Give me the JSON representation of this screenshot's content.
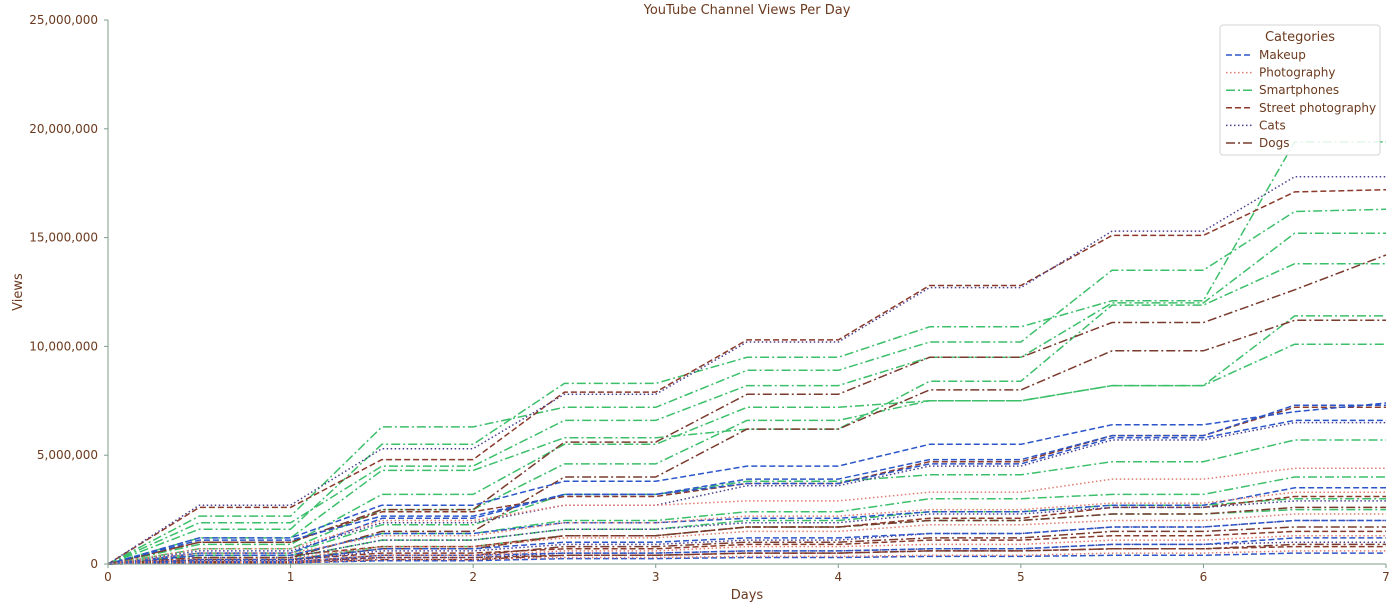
{
  "chart_data": {
    "type": "line",
    "title": "YouTube Channel Views Per Day",
    "xlabel": "Days",
    "ylabel": "Views",
    "xlim": [
      0,
      7
    ],
    "ylim": [
      0,
      25000000
    ],
    "x": [
      0,
      0.5,
      1,
      1.5,
      2,
      2.5,
      3,
      3.5,
      4,
      4.5,
      5,
      5.5,
      6,
      6.5,
      7
    ],
    "x_ticks": [
      "0",
      "1",
      "2",
      "3",
      "4",
      "5",
      "6",
      "7"
    ],
    "y_ticks": [
      "0",
      "5,000,000",
      "10,000,000",
      "15,000,000",
      "20,000,000",
      "25,000,000"
    ],
    "grid": false,
    "legend": {
      "title": "Categories",
      "placement": "top-right",
      "entries": [
        "Makeup",
        "Photography",
        "Smartphones",
        "Street photography",
        "Cats",
        "Dogs"
      ]
    },
    "styles": {
      "Makeup": {
        "color": "#2b55c9",
        "dash": "6,3"
      },
      "Photography": {
        "color": "#e07b6e",
        "dash": "1.5,2.5"
      },
      "Smartphones": {
        "color": "#3cbf6a",
        "dash": "9,3,2,3"
      },
      "Street photography": {
        "color": "#8b3a2a",
        "dash": "6,3"
      },
      "Cats": {
        "color": "#4a3f8f",
        "dash": "1.5,2.5"
      },
      "Dogs": {
        "color": "#7a3b2e",
        "dash": "9,3,2,3"
      }
    },
    "series": [
      {
        "category": "Smartphones",
        "values": [
          0,
          1600000,
          1600000,
          5500000,
          5500000,
          8300000,
          8300000,
          9500000,
          9500000,
          10900000,
          10900000,
          12100000,
          12100000,
          19400000,
          19400000
        ]
      },
      {
        "category": "Smartphones",
        "values": [
          0,
          2200000,
          2200000,
          6300000,
          6300000,
          7200000,
          7200000,
          8900000,
          8900000,
          10200000,
          10200000,
          13500000,
          13500000,
          16200000,
          16300000
        ]
      },
      {
        "category": "Smartphones",
        "values": [
          0,
          1900000,
          1900000,
          4500000,
          4500000,
          6600000,
          6600000,
          8200000,
          8200000,
          9500000,
          9500000,
          12000000,
          12000000,
          15200000,
          15200000
        ]
      },
      {
        "category": "Smartphones",
        "values": [
          0,
          1200000,
          1200000,
          4300000,
          4300000,
          5800000,
          5800000,
          6200000,
          6200000,
          8400000,
          8400000,
          11900000,
          11900000,
          13800000,
          13800000
        ]
      },
      {
        "category": "Smartphones",
        "values": [
          0,
          900000,
          900000,
          3200000,
          3200000,
          5500000,
          5500000,
          7200000,
          7200000,
          7500000,
          7500000,
          8200000,
          8200000,
          11400000,
          11400000
        ]
      },
      {
        "category": "Smartphones",
        "values": [
          0,
          700000,
          700000,
          2500000,
          2500000,
          4600000,
          4600000,
          6600000,
          6600000,
          7500000,
          7500000,
          8200000,
          8200000,
          10100000,
          10100000
        ]
      },
      {
        "category": "Smartphones",
        "values": [
          0,
          500000,
          500000,
          1800000,
          1800000,
          3200000,
          3200000,
          3800000,
          3800000,
          4100000,
          4100000,
          4700000,
          4700000,
          5700000,
          5700000
        ]
      },
      {
        "category": "Smartphones",
        "values": [
          0,
          400000,
          400000,
          1400000,
          1400000,
          2000000,
          2000000,
          2400000,
          2400000,
          3000000,
          3000000,
          3200000,
          3200000,
          4000000,
          4000000
        ]
      },
      {
        "category": "Smartphones",
        "values": [
          0,
          300000,
          300000,
          1100000,
          1100000,
          1600000,
          1600000,
          2000000,
          2000000,
          2400000,
          2400000,
          2700000,
          2700000,
          3000000,
          3000000
        ]
      },
      {
        "category": "Smartphones",
        "values": [
          0,
          200000,
          200000,
          800000,
          800000,
          1300000,
          1300000,
          1700000,
          1700000,
          2000000,
          2000000,
          2300000,
          2300000,
          2500000,
          2500000
        ]
      },
      {
        "category": "Street photography",
        "values": [
          0,
          2600000,
          2600000,
          4800000,
          4800000,
          7900000,
          7900000,
          10300000,
          10300000,
          12800000,
          12800000,
          15100000,
          15100000,
          17100000,
          17200000
        ]
      },
      {
        "category": "Street photography",
        "values": [
          0,
          1000000,
          1000000,
          2400000,
          2400000,
          3100000,
          3100000,
          3700000,
          3700000,
          4700000,
          4700000,
          5900000,
          5900000,
          7200000,
          7200000
        ]
      },
      {
        "category": "Street photography",
        "values": [
          0,
          400000,
          400000,
          800000,
          800000,
          1300000,
          1300000,
          1700000,
          1700000,
          2100000,
          2100000,
          2600000,
          2600000,
          3100000,
          3100000
        ]
      },
      {
        "category": "Street photography",
        "values": [
          0,
          200000,
          200000,
          500000,
          500000,
          700000,
          700000,
          900000,
          900000,
          1100000,
          1100000,
          1300000,
          1300000,
          1500000,
          1500000
        ]
      },
      {
        "category": "Street photography",
        "values": [
          0,
          100000,
          100000,
          300000,
          300000,
          400000,
          400000,
          500000,
          500000,
          600000,
          600000,
          700000,
          700000,
          800000,
          800000
        ]
      },
      {
        "category": "Cats",
        "values": [
          0,
          2700000,
          2700000,
          5300000,
          5300000,
          7800000,
          7800000,
          10200000,
          10200000,
          12700000,
          12700000,
          15300000,
          15300000,
          17800000,
          17800000
        ]
      },
      {
        "category": "Cats",
        "values": [
          0,
          600000,
          600000,
          1900000,
          1900000,
          2700000,
          2700000,
          3600000,
          3600000,
          4500000,
          4500000,
          5700000,
          5700000,
          6500000,
          6500000
        ]
      },
      {
        "category": "Cats",
        "values": [
          0,
          300000,
          300000,
          1100000,
          1100000,
          1600000,
          1600000,
          1900000,
          1900000,
          2300000,
          2300000,
          2600000,
          2600000,
          2900000,
          2900000
        ]
      },
      {
        "category": "Cats",
        "values": [
          0,
          150000,
          150000,
          600000,
          600000,
          900000,
          900000,
          1100000,
          1100000,
          1400000,
          1400000,
          1700000,
          1700000,
          2000000,
          2000000
        ]
      },
      {
        "category": "Cats",
        "values": [
          0,
          80000,
          80000,
          300000,
          300000,
          500000,
          500000,
          600000,
          600000,
          700000,
          700000,
          900000,
          900000,
          1000000,
          1000000
        ]
      },
      {
        "category": "Dogs",
        "values": [
          0,
          1000000,
          1000000,
          2500000,
          2500000,
          5600000,
          5600000,
          7800000,
          7800000,
          9500000,
          9500000,
          11100000,
          11100000,
          12600000,
          14200000
        ]
      },
      {
        "category": "Dogs",
        "values": [
          0,
          300000,
          300000,
          1500000,
          1500000,
          4000000,
          4000000,
          6200000,
          6200000,
          8000000,
          8000000,
          9800000,
          9800000,
          11200000,
          11200000
        ]
      },
      {
        "category": "Dogs",
        "values": [
          0,
          200000,
          200000,
          700000,
          700000,
          1300000,
          1300000,
          1700000,
          1700000,
          2000000,
          2000000,
          2300000,
          2300000,
          2600000,
          2600000
        ]
      },
      {
        "category": "Dogs",
        "values": [
          0,
          100000,
          100000,
          400000,
          400000,
          800000,
          800000,
          1000000,
          1000000,
          1200000,
          1200000,
          1500000,
          1500000,
          1700000,
          1700000
        ]
      },
      {
        "category": "Dogs",
        "values": [
          0,
          50000,
          50000,
          200000,
          200000,
          400000,
          400000,
          500000,
          500000,
          600000,
          600000,
          700000,
          700000,
          900000,
          900000
        ]
      },
      {
        "category": "Makeup",
        "values": [
          0,
          1100000,
          1100000,
          2200000,
          2200000,
          3200000,
          3200000,
          3900000,
          3900000,
          4800000,
          4800000,
          5900000,
          5900000,
          7300000,
          7300000
        ]
      },
      {
        "category": "Makeup",
        "values": [
          0,
          1200000,
          1200000,
          2700000,
          2700000,
          3800000,
          3800000,
          4500000,
          4500000,
          5500000,
          5500000,
          6400000,
          6400000,
          7000000,
          7400000
        ]
      },
      {
        "category": "Makeup",
        "values": [
          0,
          500000,
          500000,
          2100000,
          2100000,
          3200000,
          3200000,
          3700000,
          3700000,
          4600000,
          4600000,
          5800000,
          5800000,
          6600000,
          6600000
        ]
      },
      {
        "category": "Makeup",
        "values": [
          0,
          400000,
          400000,
          1400000,
          1400000,
          1900000,
          1900000,
          2100000,
          2100000,
          2400000,
          2400000,
          2700000,
          2700000,
          3500000,
          3500000
        ]
      },
      {
        "category": "Makeup",
        "values": [
          0,
          200000,
          200000,
          700000,
          700000,
          1000000,
          1000000,
          1200000,
          1200000,
          1400000,
          1400000,
          1700000,
          1700000,
          2000000,
          2000000
        ]
      },
      {
        "category": "Makeup",
        "values": [
          0,
          100000,
          100000,
          400000,
          400000,
          500000,
          500000,
          600000,
          600000,
          700000,
          700000,
          900000,
          900000,
          1200000,
          1200000
        ]
      },
      {
        "category": "Makeup",
        "values": [
          0,
          50000,
          50000,
          150000,
          150000,
          250000,
          250000,
          300000,
          300000,
          350000,
          350000,
          400000,
          400000,
          500000,
          500000
        ]
      },
      {
        "category": "Photography",
        "values": [
          0,
          700000,
          700000,
          2000000,
          2000000,
          2700000,
          2700000,
          2900000,
          2900000,
          3300000,
          3300000,
          3900000,
          3900000,
          4400000,
          4400000
        ]
      },
      {
        "category": "Photography",
        "values": [
          0,
          500000,
          500000,
          1300000,
          1300000,
          1900000,
          1900000,
          2200000,
          2200000,
          2500000,
          2500000,
          2800000,
          2800000,
          3300000,
          3300000
        ]
      },
      {
        "category": "Photography",
        "values": [
          0,
          250000,
          250000,
          800000,
          800000,
          1200000,
          1200000,
          1500000,
          1500000,
          1800000,
          1800000,
          2000000,
          2000000,
          2300000,
          2300000
        ]
      },
      {
        "category": "Photography",
        "values": [
          0,
          100000,
          100000,
          400000,
          400000,
          600000,
          600000,
          800000,
          800000,
          900000,
          900000,
          1100000,
          1100000,
          1300000,
          1300000
        ]
      },
      {
        "category": "Photography",
        "values": [
          0,
          50000,
          50000,
          200000,
          200000,
          300000,
          300000,
          350000,
          350000,
          400000,
          400000,
          500000,
          500000,
          600000,
          600000
        ]
      }
    ]
  }
}
